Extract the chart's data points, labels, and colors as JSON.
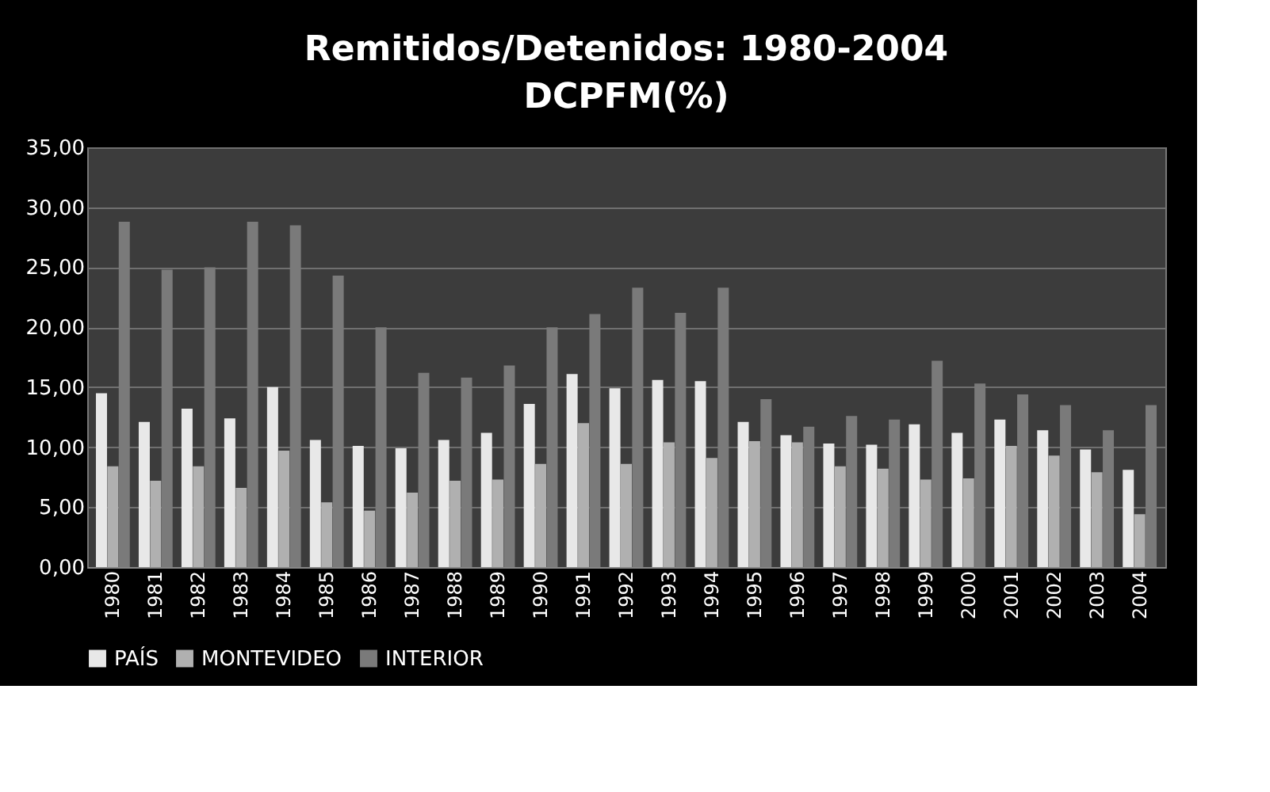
{
  "chart_data": {
    "type": "bar",
    "title": "Remitidos/Detenidos: 1980-2004",
    "subtitle": "DCPFM(%)",
    "categories": [
      "1980",
      "1981",
      "1982",
      "1983",
      "1984",
      "1985",
      "1986",
      "1987",
      "1988",
      "1989",
      "1990",
      "1991",
      "1992",
      "1993",
      "1994",
      "1995",
      "1996",
      "1997",
      "1998",
      "1999",
      "2000",
      "2001",
      "2002",
      "2003",
      "2004"
    ],
    "series": [
      {
        "name": "PAÍS",
        "color": "#e8e8e8",
        "values": [
          14.5,
          12.1,
          13.2,
          12.4,
          15.0,
          10.6,
          10.1,
          9.9,
          10.6,
          11.2,
          13.6,
          16.1,
          14.9,
          15.6,
          15.5,
          12.1,
          11.0,
          10.3,
          10.2,
          11.9,
          11.2,
          12.3,
          11.4,
          9.8,
          8.1
        ]
      },
      {
        "name": "MONTEVIDEO",
        "color": "#b0b0b0",
        "values": [
          8.4,
          7.2,
          8.4,
          6.6,
          9.7,
          5.4,
          4.7,
          6.2,
          7.2,
          7.3,
          8.6,
          12.0,
          8.6,
          10.4,
          9.1,
          10.5,
          10.4,
          8.4,
          8.2,
          7.3,
          7.4,
          10.1,
          9.3,
          7.9,
          4.4
        ]
      },
      {
        "name": "INTERIOR",
        "color": "#7a7a7a",
        "values": [
          28.8,
          24.8,
          25.0,
          28.8,
          28.5,
          24.3,
          20.0,
          16.2,
          15.8,
          16.8,
          20.0,
          21.1,
          23.3,
          21.2,
          23.3,
          14.0,
          11.7,
          12.6,
          12.3,
          17.2,
          15.3,
          14.4,
          13.5,
          11.4,
          13.5
        ]
      }
    ],
    "ylim": [
      0,
      35
    ],
    "yticks": [
      {
        "value": 0,
        "label": "0,00"
      },
      {
        "value": 5,
        "label": "5,00"
      },
      {
        "value": 10,
        "label": "10,00"
      },
      {
        "value": 15,
        "label": "15,00"
      },
      {
        "value": 20,
        "label": "20,00"
      },
      {
        "value": 25,
        "label": "25,00"
      },
      {
        "value": 30,
        "label": "30,00"
      },
      {
        "value": 35,
        "label": "35,00"
      }
    ],
    "grid": "y",
    "legend": "bottom"
  }
}
